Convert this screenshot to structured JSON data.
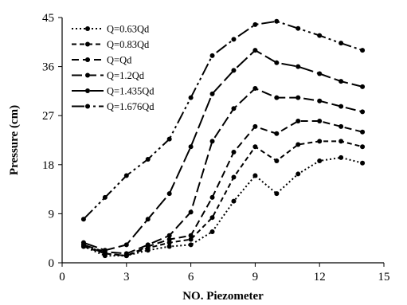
{
  "chart_data": {
    "type": "line",
    "title": "",
    "xlabel": "NO. Piezometer",
    "ylabel": "Pressure (cm)",
    "xlim": [
      0,
      15
    ],
    "ylim": [
      0,
      45
    ],
    "xticks": [
      0,
      3,
      6,
      9,
      12,
      15
    ],
    "yticks": [
      0,
      9,
      18,
      27,
      36,
      45
    ],
    "grid": false,
    "legend_position": "top-left",
    "series": [
      {
        "name": "Q=0.63Qd",
        "dash": "dotted",
        "x": [
          1,
          2,
          3,
          4,
          5,
          6,
          7,
          8,
          9,
          10,
          11,
          12,
          13,
          14
        ],
        "y": [
          3.0,
          1.3,
          1.3,
          2.3,
          3.0,
          3.3,
          5.7,
          11.3,
          16.0,
          12.7,
          16.3,
          18.7,
          19.3,
          18.3
        ]
      },
      {
        "name": "Q=0.83Qd",
        "dash": "short-dash",
        "x": [
          1,
          2,
          3,
          4,
          5,
          6,
          7,
          8,
          9,
          10,
          11,
          12,
          13,
          14
        ],
        "y": [
          3.0,
          1.7,
          1.3,
          2.7,
          3.7,
          4.3,
          8.3,
          15.7,
          21.3,
          18.7,
          21.7,
          22.3,
          22.3,
          21.3
        ]
      },
      {
        "name": "Q=Qd",
        "dash": "dash",
        "x": [
          1,
          2,
          3,
          4,
          5,
          6,
          7,
          8,
          9,
          10,
          11,
          12,
          13,
          14
        ],
        "y": [
          3.3,
          1.7,
          1.3,
          3.0,
          4.3,
          5.0,
          12.0,
          20.3,
          25.0,
          23.7,
          26.0,
          26.0,
          25.0,
          24.0
        ]
      },
      {
        "name": "Q=1.2Qd",
        "dash": "long-dash",
        "x": [
          1,
          2,
          3,
          4,
          5,
          6,
          7,
          8,
          9,
          10,
          11,
          12,
          13,
          14
        ],
        "y": [
          3.3,
          2.0,
          1.7,
          3.3,
          5.0,
          9.3,
          22.3,
          28.3,
          32.0,
          30.3,
          30.3,
          29.7,
          28.7,
          27.7
        ]
      },
      {
        "name": "Q=1.435Qd",
        "dash": "longer-dash",
        "x": [
          1,
          2,
          3,
          4,
          5,
          6,
          7,
          8,
          9,
          10,
          11,
          12,
          13,
          14
        ],
        "y": [
          3.7,
          2.3,
          3.3,
          8.0,
          12.7,
          21.3,
          31.0,
          35.3,
          39.0,
          36.7,
          36.0,
          34.7,
          33.3,
          32.3
        ]
      },
      {
        "name": "Q=1.676Qd",
        "dash": "dash-dot-dot",
        "x": [
          1,
          2,
          3,
          4,
          5,
          6,
          7,
          8,
          9,
          10,
          11,
          12,
          13,
          14
        ],
        "y": [
          8.0,
          12.0,
          16.0,
          19.0,
          22.7,
          30.3,
          38.0,
          41.0,
          43.7,
          44.3,
          43.0,
          41.7,
          40.3,
          39.0
        ]
      }
    ]
  }
}
